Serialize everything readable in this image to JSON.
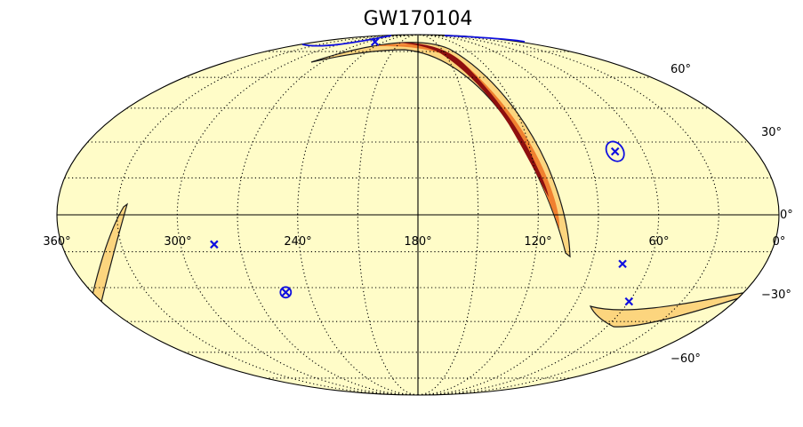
{
  "figure": {
    "title": "GW170104",
    "projection": "mollweide",
    "colors": {
      "background": "#fffcc8",
      "outer_region": "#fcd57e",
      "mid_region": "#f08030",
      "core_region": "#8e0f0f",
      "contour": "#1a1a1a",
      "markers": "#1010e0",
      "grid": "#000000"
    },
    "longitude_labels": [
      "360°",
      "300°",
      "240°",
      "180°",
      "120°",
      "60°",
      "0°"
    ],
    "latitude_labels": [
      "60°",
      "30°",
      "0°",
      "−30°",
      "−60°"
    ],
    "longitude_label_values": [
      360,
      300,
      240,
      180,
      120,
      60,
      0
    ],
    "latitude_label_values": [
      60,
      30,
      0,
      -30,
      -60
    ],
    "meridian_values": [
      330,
      300,
      270,
      240,
      210,
      180,
      150,
      120,
      90,
      60,
      30
    ],
    "parallel_values": [
      75,
      60,
      45,
      30,
      15,
      0,
      -15,
      -30,
      -45,
      -60,
      -75
    ]
  },
  "markers": [
    {
      "name": "cross-1",
      "lon": 256,
      "lat": 82,
      "type": "cross"
    },
    {
      "name": "cross-2",
      "lon": 75,
      "lat": 26,
      "type": "cross-ring"
    },
    {
      "name": "cross-3",
      "lon": 283,
      "lat": -12,
      "type": "cross"
    },
    {
      "name": "cross-4",
      "lon": 253,
      "lat": -32,
      "type": "cross-ring"
    },
    {
      "name": "cross-5",
      "lon": 74,
      "lat": -20,
      "type": "cross"
    },
    {
      "name": "cross-6",
      "lon": 60,
      "lat": -36,
      "type": "cross"
    }
  ]
}
